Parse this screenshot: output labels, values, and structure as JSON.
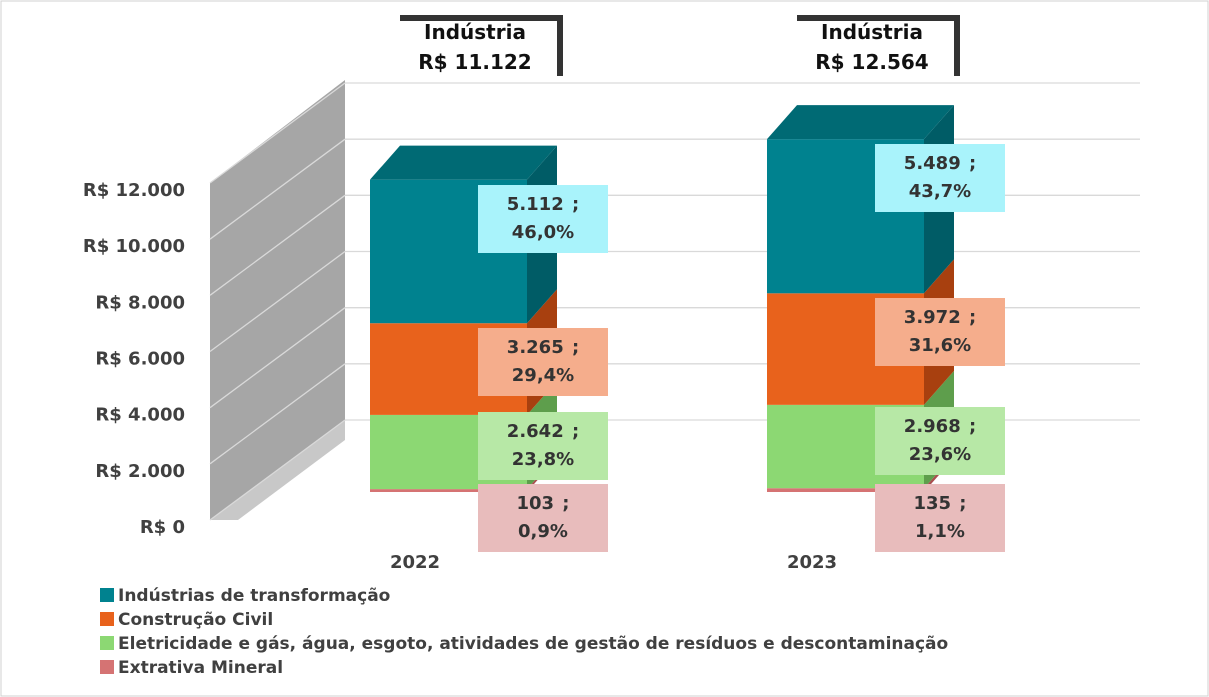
{
  "chart_data": {
    "type": "bar3d",
    "categories": [
      "2022",
      "2023"
    ],
    "series": [
      {
        "name": "Indústrias de transformação",
        "color": "#00828f",
        "side": "#005c66",
        "top": "#006a74",
        "label_bg": "#a9f3fb",
        "values": [
          5112,
          5489
        ],
        "value_labels": [
          "5.112 ; 46,0%",
          "5.489 ; 43,7%"
        ]
      },
      {
        "name": "Construção Civil",
        "color": "#e8621c",
        "side": "#a8400f",
        "top": "#c2501a",
        "label_bg": "#f5ad8c",
        "values": [
          3265,
          3972
        ],
        "value_labels": [
          "3.265 ; 29,4%",
          "3.972 ; 31,6%"
        ]
      },
      {
        "name": "Eletricidade e gás, água, esgoto, atividades de gestão de resíduos e descontaminação",
        "color": "#8cd873",
        "side": "#5e9e4c",
        "top": "#79c062",
        "label_bg": "#b7e8a6",
        "values": [
          2642,
          2968
        ],
        "value_labels": [
          "2.642 ; 23,8%",
          "2.968 ; 23,6%"
        ]
      },
      {
        "name": "Extrativa Mineral",
        "color": "#d57373",
        "side": "#a85050",
        "top": "#c06060",
        "label_bg": "#e8bcbc",
        "values": [
          103,
          135
        ],
        "value_labels": [
          "103 ; 0,9%",
          "135 ; 1,1%"
        ]
      }
    ],
    "total_title": "Indústria",
    "totals": [
      11122,
      12564
    ],
    "total_labels": [
      "R$ 11.122",
      "R$ 12.564"
    ],
    "ylim": [
      0,
      12000
    ],
    "yticks": [
      {
        "value": 0,
        "label": "R$ 0"
      },
      {
        "value": 2000,
        "label": "R$ 2.000"
      },
      {
        "value": 4000,
        "label": "R$ 4.000"
      },
      {
        "value": 6000,
        "label": "R$ 6.000"
      },
      {
        "value": 8000,
        "label": "R$ 8.000"
      },
      {
        "value": 10000,
        "label": "R$ 10.000"
      },
      {
        "value": 12000,
        "label": "R$ 12.000"
      }
    ],
    "grid": true
  }
}
